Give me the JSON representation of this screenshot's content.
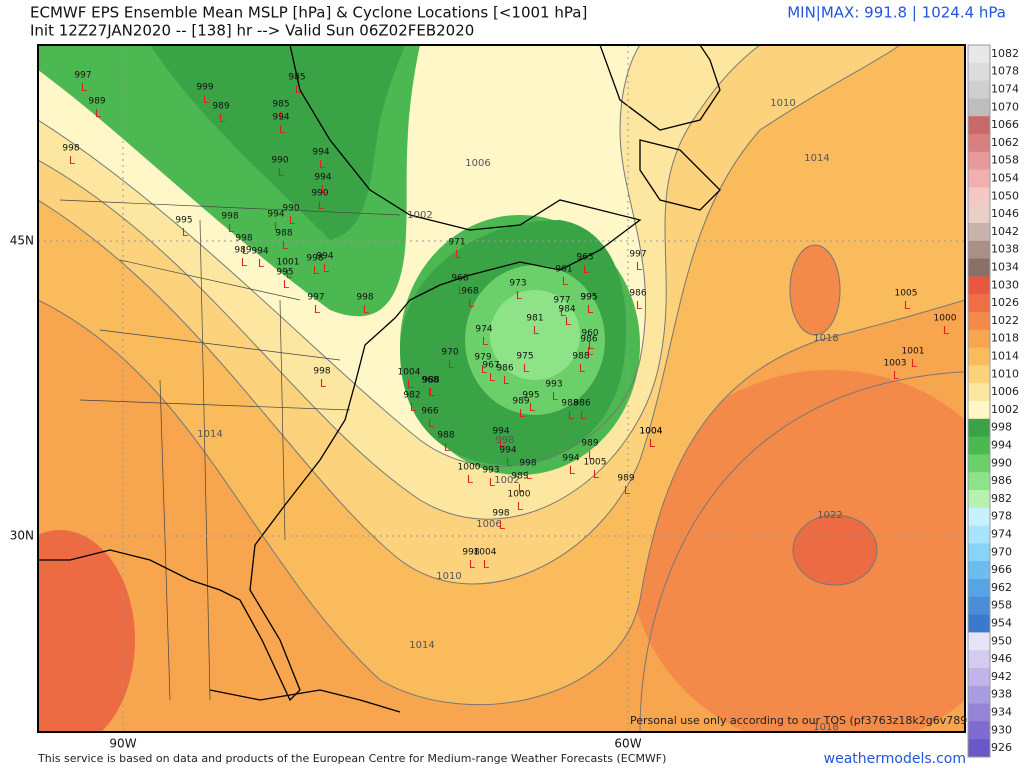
{
  "header": {
    "title": "ECMWF EPS Ensemble Mean MSLP [hPa] & Cyclone Locations [<1001 hPa]",
    "subtitle": "Init 12Z27JAN2020 -- [138] hr --> Valid Sun 06Z02FEB2020",
    "minmax": "MIN|MAX: 991.8 | 1024.4 hPa"
  },
  "axes": {
    "lat_labels": [
      "45N",
      "30N"
    ],
    "lon_labels": [
      "90W",
      "60W"
    ]
  },
  "contour_labels": [
    "1010",
    "1014",
    "1006",
    "1002",
    "1018",
    "1014",
    "1022",
    "1010",
    "1006",
    "1002",
    "998",
    "1014",
    "1018"
  ],
  "cyclone_marker": "L",
  "cyclones": [
    997,
    989,
    998,
    999,
    989,
    985,
    985,
    994,
    990,
    994,
    994,
    990,
    995,
    998,
    994,
    990,
    988,
    998,
    989,
    994,
    1001,
    995,
    994,
    998,
    997,
    998,
    971,
    968,
    968,
    974,
    970,
    979,
    967,
    975,
    986,
    981,
    977,
    984,
    995,
    973,
    960,
    986,
    988,
    993,
    995,
    989,
    988,
    986,
    994,
    994,
    989,
    998,
    1000,
    993,
    988,
    1004,
    1000,
    998,
    998,
    1004,
    1005,
    1003,
    1001,
    1000,
    986,
    997,
    963,
    989,
    1004,
    966,
    982,
    988,
    1004,
    968,
    961,
    995,
    1005,
    989,
    994,
    998
  ],
  "colorbar": {
    "labels": [
      1082,
      1078,
      1074,
      1070,
      1066,
      1062,
      1058,
      1054,
      1050,
      1046,
      1042,
      1038,
      1034,
      1030,
      1026,
      1022,
      1018,
      1014,
      1010,
      1006,
      1002,
      998,
      994,
      990,
      986,
      982,
      978,
      974,
      970,
      966,
      962,
      958,
      954,
      950,
      946,
      942,
      938,
      934,
      930,
      926
    ],
    "colors": [
      "#e8e8e8",
      "#dcdcdc",
      "#cfcfcf",
      "#bdbdbd",
      "#c96a6a",
      "#d88080",
      "#e89a9a",
      "#f0b0b0",
      "#f5c8c8",
      "#e8d0c8",
      "#c8b4ac",
      "#a89088",
      "#8a7068",
      "#e8583e",
      "#ee6f45",
      "#f38a4a",
      "#f7a54e",
      "#fabb5c",
      "#fcd27c",
      "#fde7a0",
      "#fff7c8",
      "#3aa346",
      "#4cb852",
      "#6cd06a",
      "#8ee388",
      "#b8f2b0",
      "#c8f0ff",
      "#a8e4ff",
      "#88d4f8",
      "#6cbcf0",
      "#56a4e4",
      "#4a8ed8",
      "#3c78cc",
      "#e8e4f8",
      "#d4ccf0",
      "#c0b4e8",
      "#aa9ce0",
      "#9484d8",
      "#7e6cd0",
      "#6a58c8"
    ]
  },
  "footer": {
    "credit": "This service is based on data and products of the European Centre for Medium-range Weather Forecasts (ECMWF)",
    "site": "weathermodels.com",
    "tos": "Personal use only according to our TOS (pf3763z18k2g6v789)"
  }
}
